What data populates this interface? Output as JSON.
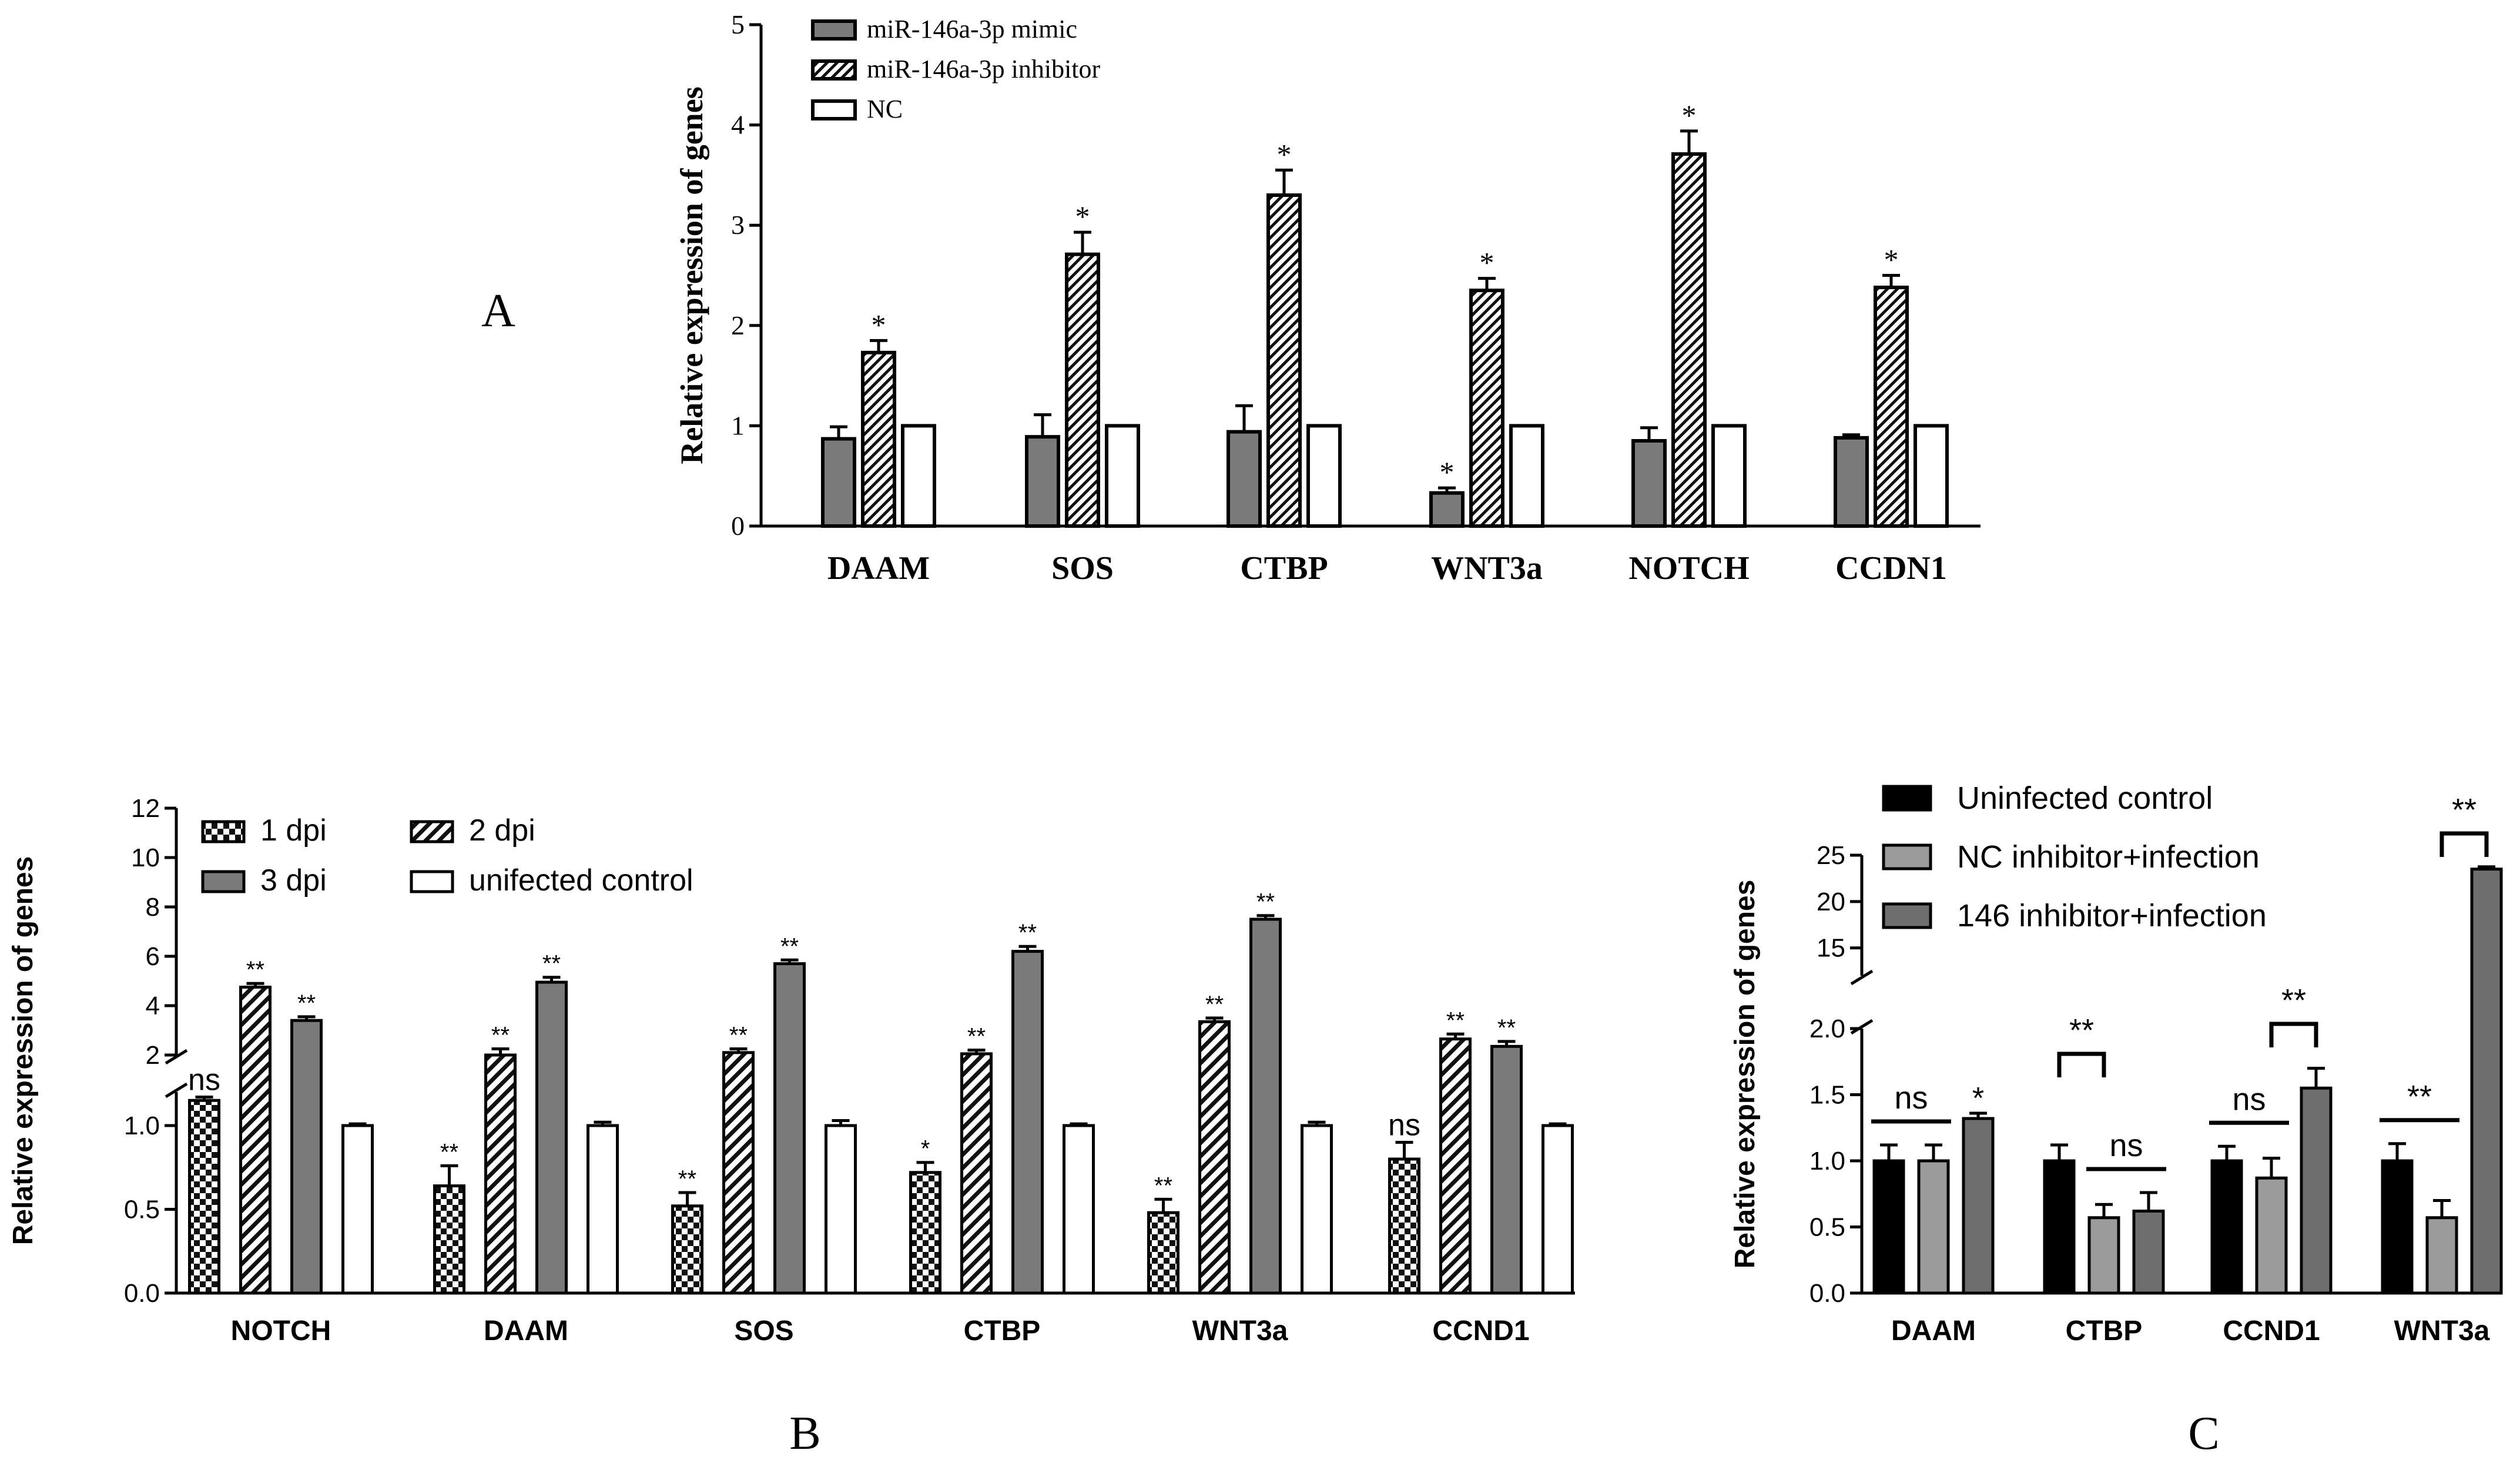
{
  "chart_data": [
    {
      "panel": "A",
      "type": "bar",
      "ylabel": "Relative expression of genes",
      "ylim": [
        0,
        5
      ],
      "yticks": [
        "0",
        "1",
        "2",
        "3",
        "4",
        "5"
      ],
      "categories": [
        "DAAM",
        "SOS",
        "CTBP",
        "WNT3a",
        "NOTCH",
        "CCDN1"
      ],
      "series": [
        {
          "name": "miR-146a-3p mimic",
          "values": [
            0.87,
            0.89,
            0.94,
            0.33,
            0.85,
            0.88
          ],
          "errors": [
            0.12,
            0.22,
            0.26,
            0.05,
            0.13,
            0.03
          ],
          "sig": [
            "",
            "",
            "",
            "*",
            "",
            ""
          ]
        },
        {
          "name": "miR-146a-3p inhibitor",
          "values": [
            1.73,
            2.71,
            3.3,
            2.35,
            3.71,
            2.38
          ],
          "errors": [
            0.12,
            0.22,
            0.25,
            0.12,
            0.23,
            0.12
          ],
          "sig": [
            "*",
            "*",
            "*",
            "*",
            "*",
            "*"
          ]
        },
        {
          "name": "NC",
          "values": [
            1.0,
            1.0,
            1.0,
            1.0,
            1.0,
            1.0
          ],
          "errors": [
            0,
            0,
            0,
            0,
            0,
            0
          ],
          "sig": [
            "",
            "",
            "",
            "",
            "",
            ""
          ]
        }
      ],
      "legend": "top-left"
    },
    {
      "panel": "B",
      "type": "bar",
      "ylabel": "Relative expression of genes",
      "axis_break": [
        1.2,
        2
      ],
      "ylim": [
        0,
        12
      ],
      "yticks": [
        "0.0",
        "0.5",
        "1.0",
        "2",
        "4",
        "6",
        "8",
        "10",
        "12"
      ],
      "categories": [
        "NOTCH",
        "DAAM",
        "SOS",
        "CTBP",
        "WNT3a",
        "CCND1"
      ],
      "series": [
        {
          "name": "1 dpi",
          "values": [
            1.15,
            0.64,
            0.52,
            0.72,
            0.48,
            0.8
          ],
          "errors": [
            0.02,
            0.12,
            0.08,
            0.06,
            0.08,
            0.1
          ],
          "sig": [
            "ns",
            "**",
            "**",
            "*",
            "**",
            "ns"
          ]
        },
        {
          "name": "2 dpi",
          "values": [
            4.75,
            2.0,
            2.1,
            2.05,
            3.35,
            2.65
          ],
          "errors": [
            0.15,
            0.25,
            0.15,
            0.15,
            0.15,
            0.2
          ],
          "sig": [
            "**",
            "**",
            "**",
            "**",
            "**",
            "**"
          ]
        },
        {
          "name": "3 dpi",
          "values": [
            3.4,
            4.95,
            5.7,
            6.2,
            7.5,
            2.35
          ],
          "errors": [
            0.15,
            0.2,
            0.15,
            0.2,
            0.15,
            0.2
          ],
          "sig": [
            "**",
            "**",
            "**",
            "**",
            "**",
            "**"
          ]
        },
        {
          "name": "unifected control",
          "values": [
            1.0,
            1.0,
            1.0,
            1.0,
            1.0,
            1.0
          ],
          "errors": [
            0.01,
            0.02,
            0.03,
            0.01,
            0.02,
            0.01
          ],
          "sig": [
            "",
            "",
            "",
            "",
            "",
            ""
          ]
        }
      ],
      "legend": "top-left"
    },
    {
      "panel": "C",
      "type": "bar",
      "ylabel": "Relative expression of genes",
      "axis_break": [
        2.0,
        12
      ],
      "ylim": [
        0,
        25
      ],
      "yticks": [
        "0.0",
        "0.5",
        "1.0",
        "1.5",
        "2.0",
        "15",
        "20",
        "25"
      ],
      "categories": [
        "DAAM",
        "CTBP",
        "CCND1",
        "WNT3a"
      ],
      "series": [
        {
          "name": "Uninfected control",
          "values": [
            1.0,
            1.0,
            1.0,
            1.0
          ],
          "errors": [
            0.12,
            0.12,
            0.11,
            0.13
          ]
        },
        {
          "name": "NC inhibitor+infection",
          "values": [
            1.0,
            0.57,
            0.87,
            0.57
          ],
          "errors": [
            0.12,
            0.1,
            0.15,
            0.13
          ]
        },
        {
          "name": "146 inhibitor+infection",
          "values": [
            1.32,
            0.62,
            1.55,
            23.5
          ],
          "errors": [
            0.04,
            0.14,
            0.15,
            0.25
          ]
        }
      ],
      "annotations": [
        {
          "category": "DAAM",
          "label": "ns",
          "type": "line",
          "from": 0,
          "to": 1
        },
        {
          "category": "DAAM",
          "label": "*",
          "type": "star",
          "series": 2
        },
        {
          "category": "CTBP",
          "label": "**",
          "type": "bracket",
          "from": 0,
          "to": 1
        },
        {
          "category": "CTBP",
          "label": "ns",
          "type": "line",
          "from": 1,
          "to": 2
        },
        {
          "category": "CCND1",
          "label": "ns",
          "type": "line",
          "from": 0,
          "to": 1
        },
        {
          "category": "CCND1",
          "label": "**",
          "type": "bracket",
          "from": 1,
          "to": 2
        },
        {
          "category": "WNT3a",
          "label": "**",
          "type": "line",
          "from": 0,
          "to": 1
        },
        {
          "category": "WNT3a",
          "label": "**",
          "type": "bracket",
          "from": 1,
          "to": 2
        }
      ],
      "legend": "top-left"
    }
  ],
  "panel_labels": [
    "A",
    "B",
    "C"
  ]
}
